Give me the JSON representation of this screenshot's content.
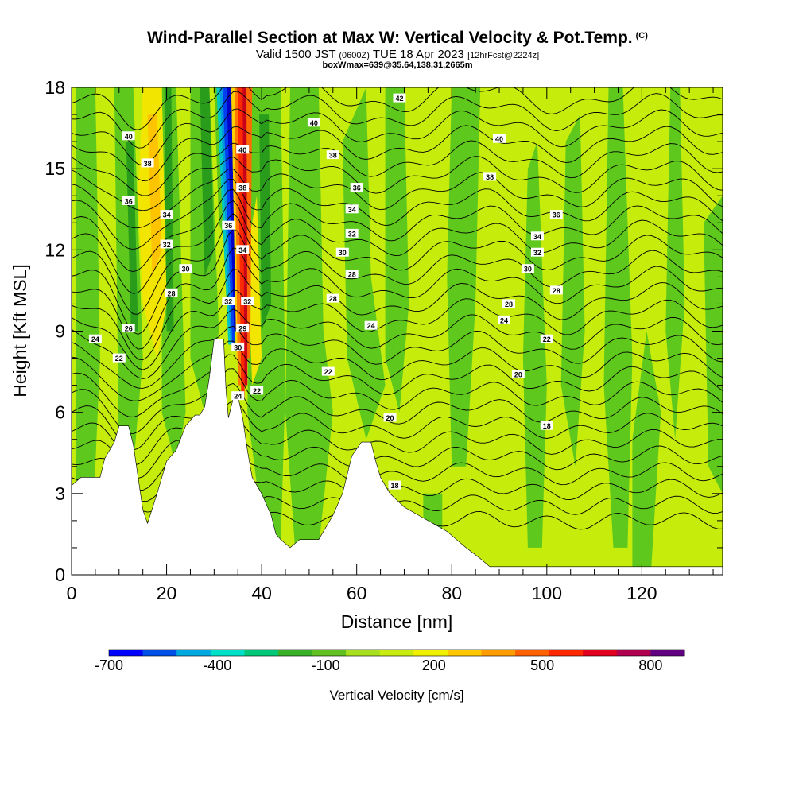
{
  "chart_data": {
    "type": "heatmap",
    "title": "Wind-Parallel Section at Max W: Vertical Velocity & Pot.Temp.",
    "copyright_mark": "(C)",
    "subtitle_main": "Valid 1500 JST",
    "subtitle_utc": "(0600Z)",
    "subtitle_date": "TUE 18 Apr 2023",
    "subtitle_fcst": "[12hrFcst@2224z]",
    "info_line": "boxWmax=639@35.64,138.31,2665m",
    "xlabel": "Distance [nm]",
    "ylabel": "Height [Kft MSL]",
    "xlim": [
      0,
      137
    ],
    "ylim": [
      0,
      18
    ],
    "x_ticks": [
      "0",
      "20",
      "40",
      "60",
      "80",
      "100",
      "120"
    ],
    "y_ticks": [
      "0",
      "3",
      "6",
      "9",
      "12",
      "15",
      "18"
    ],
    "grid": false,
    "colorbar": {
      "title": "Vertical Velocity [cm/s]",
      "labels": [
        "-700",
        "-400",
        "-100",
        "200",
        "500",
        "800"
      ],
      "colors": [
        "#0000ff",
        "#0050e8",
        "#00a8e0",
        "#00e0c8",
        "#00c878",
        "#38b028",
        "#60c020",
        "#a8e020",
        "#c8ec10",
        "#f0f000",
        "#ffc800",
        "#ff9c00",
        "#ff6000",
        "#ff2800",
        "#e0001c",
        "#b00050",
        "#600080"
      ]
    },
    "background_field_color": "#c6ec0c",
    "terrain_profile": [
      [
        0,
        3.3
      ],
      [
        2,
        3.6
      ],
      [
        6,
        3.6
      ],
      [
        7,
        4.3
      ],
      [
        9,
        4.9
      ],
      [
        10,
        5.5
      ],
      [
        12,
        5.5
      ],
      [
        13,
        4.8
      ],
      [
        15,
        2.4
      ],
      [
        16,
        1.9
      ],
      [
        18,
        3.0
      ],
      [
        20,
        4.2
      ],
      [
        22,
        4.6
      ],
      [
        24,
        5.5
      ],
      [
        26,
        5.9
      ],
      [
        27,
        5.9
      ],
      [
        28,
        6.2
      ],
      [
        29,
        7.3
      ],
      [
        30,
        8.7
      ],
      [
        32,
        8.7
      ],
      [
        32.5,
        6.8
      ],
      [
        33,
        5.8
      ],
      [
        34,
        6.5
      ],
      [
        35,
        6.6
      ],
      [
        36,
        5.8
      ],
      [
        37,
        4.6
      ],
      [
        38,
        3.6
      ],
      [
        40,
        3.0
      ],
      [
        42,
        2.2
      ],
      [
        43,
        1.5
      ],
      [
        44,
        1.3
      ],
      [
        46,
        1.0
      ],
      [
        48,
        1.3
      ],
      [
        52,
        1.3
      ],
      [
        55,
        2.2
      ],
      [
        57,
        3.0
      ],
      [
        59,
        4.4
      ],
      [
        61,
        4.9
      ],
      [
        63,
        4.9
      ],
      [
        64,
        4.2
      ],
      [
        65,
        3.6
      ],
      [
        67,
        3.0
      ],
      [
        70,
        2.5
      ],
      [
        75,
        2.0
      ],
      [
        79,
        1.6
      ],
      [
        81,
        1.3
      ],
      [
        83,
        1.0
      ],
      [
        86,
        0.6
      ],
      [
        88,
        0.3
      ],
      [
        137,
        0.3
      ]
    ],
    "contour_label_style": "isentropes in K (potential temperature)",
    "contour_labels": [
      {
        "x": 69,
        "y": 17.6,
        "text": "42"
      },
      {
        "x": 51,
        "y": 16.7,
        "text": "40"
      },
      {
        "x": 12,
        "y": 16.2,
        "text": "40"
      },
      {
        "x": 90,
        "y": 16.1,
        "text": "40"
      },
      {
        "x": 36,
        "y": 15.7,
        "text": "40"
      },
      {
        "x": 55,
        "y": 15.5,
        "text": "38"
      },
      {
        "x": 16,
        "y": 15.2,
        "text": "38"
      },
      {
        "x": 88,
        "y": 14.7,
        "text": "38"
      },
      {
        "x": 36,
        "y": 14.3,
        "text": "38"
      },
      {
        "x": 60,
        "y": 14.3,
        "text": "36"
      },
      {
        "x": 12,
        "y": 13.8,
        "text": "36"
      },
      {
        "x": 59,
        "y": 13.5,
        "text": "34"
      },
      {
        "x": 102,
        "y": 13.3,
        "text": "36"
      },
      {
        "x": 20,
        "y": 13.3,
        "text": "34"
      },
      {
        "x": 33,
        "y": 12.9,
        "text": "36"
      },
      {
        "x": 59,
        "y": 12.6,
        "text": "32"
      },
      {
        "x": 98,
        "y": 12.5,
        "text": "34"
      },
      {
        "x": 20,
        "y": 12.2,
        "text": "32"
      },
      {
        "x": 36,
        "y": 12.0,
        "text": "34"
      },
      {
        "x": 57,
        "y": 11.9,
        "text": "30"
      },
      {
        "x": 98,
        "y": 11.9,
        "text": "32"
      },
      {
        "x": 24,
        "y": 11.3,
        "text": "30"
      },
      {
        "x": 96,
        "y": 11.3,
        "text": "30"
      },
      {
        "x": 59,
        "y": 11.1,
        "text": "28"
      },
      {
        "x": 102,
        "y": 10.5,
        "text": "28"
      },
      {
        "x": 21,
        "y": 10.4,
        "text": "28"
      },
      {
        "x": 55,
        "y": 10.2,
        "text": "28"
      },
      {
        "x": 33,
        "y": 10.1,
        "text": "32"
      },
      {
        "x": 37,
        "y": 10.1,
        "text": "32"
      },
      {
        "x": 92,
        "y": 10.0,
        "text": "28"
      },
      {
        "x": 91,
        "y": 9.4,
        "text": "24"
      },
      {
        "x": 63,
        "y": 9.2,
        "text": "24"
      },
      {
        "x": 12,
        "y": 9.1,
        "text": "26"
      },
      {
        "x": 36,
        "y": 9.1,
        "text": "29"
      },
      {
        "x": 5,
        "y": 8.7,
        "text": "24"
      },
      {
        "x": 100,
        "y": 8.7,
        "text": "22"
      },
      {
        "x": 35,
        "y": 8.4,
        "text": "30"
      },
      {
        "x": 10,
        "y": 8.0,
        "text": "22"
      },
      {
        "x": 54,
        "y": 7.5,
        "text": "22"
      },
      {
        "x": 94,
        "y": 7.4,
        "text": "20"
      },
      {
        "x": 39,
        "y": 6.8,
        "text": "22"
      },
      {
        "x": 35,
        "y": 6.6,
        "text": "24"
      },
      {
        "x": 67,
        "y": 5.8,
        "text": "20"
      },
      {
        "x": 100,
        "y": 5.5,
        "text": "18"
      },
      {
        "x": 68,
        "y": 3.3,
        "text": "18"
      }
    ]
  }
}
